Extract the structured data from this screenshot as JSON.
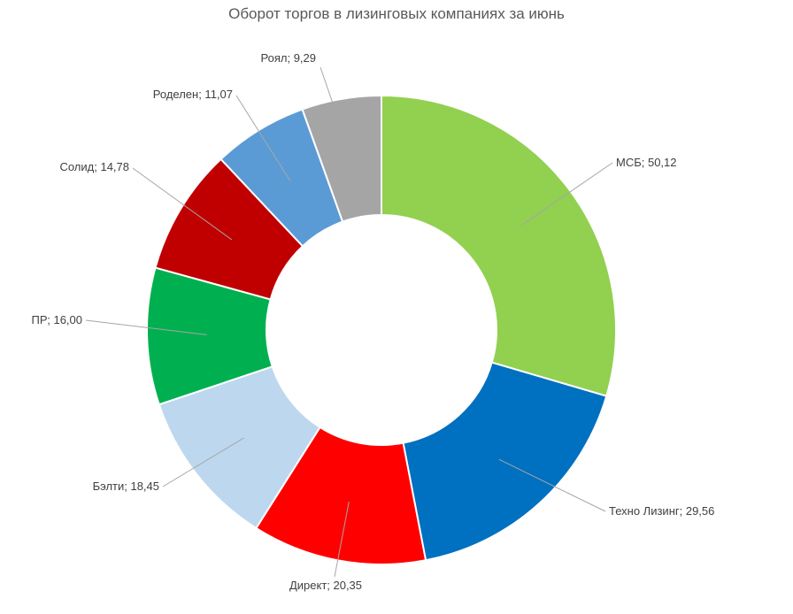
{
  "chart_data": {
    "type": "pie",
    "variant": "donut",
    "title": "Оборот торгов в лизинговых компаниях за июнь",
    "legend": "none",
    "categories": [
      "МСБ",
      "Техно Лизинг",
      "Директ",
      "Бэлти",
      "ПР",
      "Солид",
      "Роделен",
      "Роял"
    ],
    "values": [
      50.12,
      29.56,
      20.35,
      18.45,
      16.0,
      14.78,
      11.07,
      9.29
    ],
    "value_labels": [
      "50,12",
      "29,56",
      "20,35",
      "18,45",
      "16,00",
      "14,78",
      "11,07",
      "9,29"
    ],
    "colors": [
      "#92d050",
      "#0070c0",
      "#ff0000",
      "#bdd7ee",
      "#00b050",
      "#c00000",
      "#5b9bd5",
      "#a5a5a5"
    ]
  }
}
